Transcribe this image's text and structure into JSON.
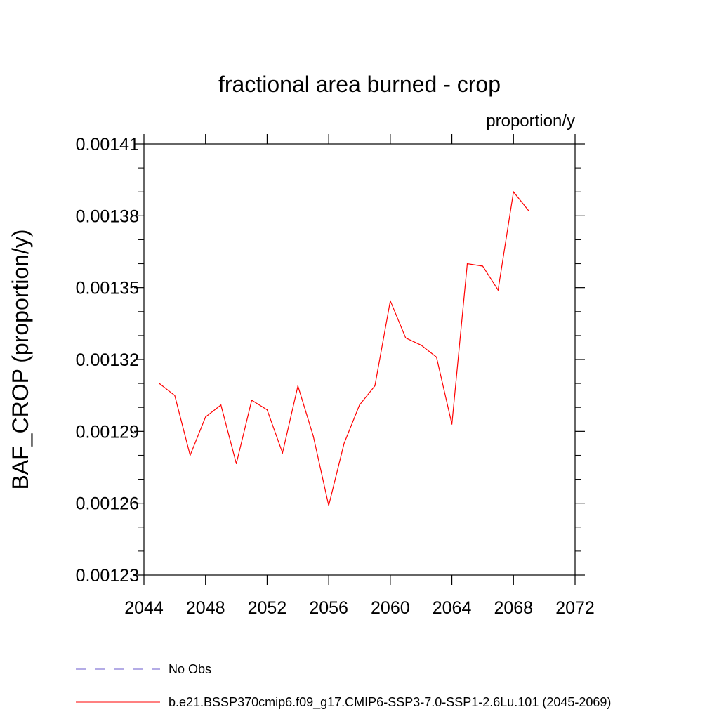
{
  "chart_data": {
    "type": "line",
    "title": "fractional area burned - crop",
    "units": "proportion/y",
    "ylabel": "BAF_CROP  (proportion/y)",
    "xlabel": "",
    "xlim": [
      2044,
      2072
    ],
    "ylim": [
      0.00123,
      0.00141
    ],
    "xticks": [
      2044,
      2048,
      2052,
      2056,
      2060,
      2064,
      2068,
      2072
    ],
    "yticks": [
      "0.00123",
      "0.00126",
      "0.00129",
      "0.00132",
      "0.00135",
      "0.00138",
      "0.00141"
    ],
    "series": [
      {
        "name": "b.e21.BSSP370cmip6.f09_g17.CMIP6-SSP3-7.0-SSP1-2.6Lu.101 (2045-2069)",
        "color": "#ff0000",
        "style": "solid",
        "x": [
          2045,
          2046,
          2047,
          2048,
          2049,
          2050,
          2051,
          2052,
          2053,
          2054,
          2055,
          2056,
          2057,
          2058,
          2059,
          2060,
          2061,
          2062,
          2063,
          2064,
          2065,
          2066,
          2067,
          2068,
          2069
        ],
        "y": [
          0.00131,
          0.001305,
          0.00128,
          0.001296,
          0.001301,
          0.0012765,
          0.001303,
          0.001299,
          0.001281,
          0.001309,
          0.001288,
          0.001259,
          0.001285,
          0.001301,
          0.001309,
          0.0013445,
          0.001329,
          0.001326,
          0.001321,
          0.001293,
          0.00136,
          0.001359,
          0.001349,
          0.00139,
          0.001382
        ]
      }
    ],
    "legend": [
      {
        "label": "No Obs",
        "color": "#6a5acd",
        "style": "dashed"
      },
      {
        "label": "b.e21.BSSP370cmip6.f09_g17.CMIP6-SSP3-7.0-SSP1-2.6Lu.101 (2045-2069)",
        "color": "#ff0000",
        "style": "solid"
      }
    ]
  }
}
